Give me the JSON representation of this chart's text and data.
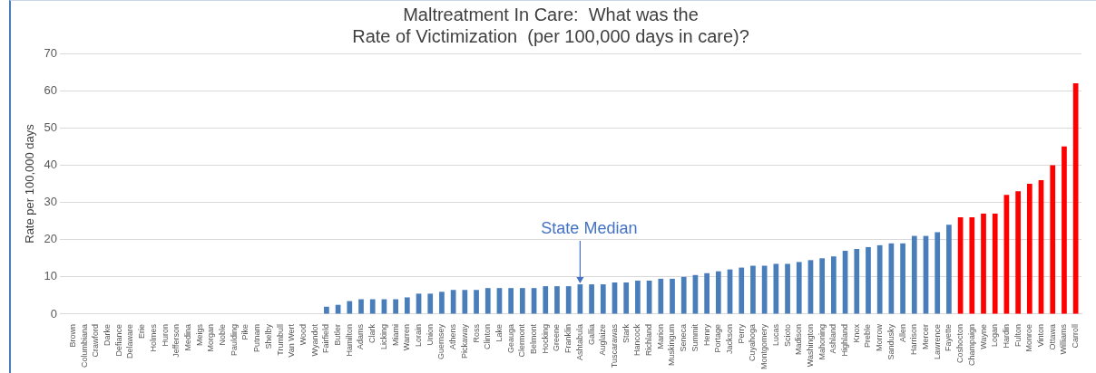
{
  "chart_data": {
    "type": "bar",
    "title": "Maltreatment In Care:  What was the\nRate of Victimization  (per 100,000 days in care)?",
    "ylabel": "Rate per 100,000 days",
    "categories": [
      "Brown",
      "Columbiana",
      "Crawford",
      "Darke",
      "Defiance",
      "Delaware",
      "Erie",
      "Holmes",
      "Huron",
      "Jefferson",
      "Medina",
      "Meigs",
      "Morgan",
      "Noble",
      "Paulding",
      "Pike",
      "Putnam",
      "Shelby",
      "Trumbull",
      "Van Wert",
      "Wood",
      "Wyandot",
      "Fairfield",
      "Butler",
      "Hamilton",
      "Adams",
      "Clark",
      "Licking",
      "Miami",
      "Warren",
      "Lorain",
      "Union",
      "Guernsey",
      "Athens",
      "Pickaway",
      "Ross",
      "Clinton",
      "Lake",
      "Geauga",
      "Clermont",
      "Belmont",
      "Hocking",
      "Greene",
      "Franklin",
      "Ashtabula",
      "Gallia",
      "Auglaize",
      "Tuscarawas",
      "Stark",
      "Hancock",
      "Richland",
      "Marion",
      "Muskingum",
      "Seneca",
      "Summit",
      "Henry",
      "Portage",
      "Jackson",
      "Perry",
      "Cuyahoga",
      "Montgomery",
      "Lucas",
      "Scioto",
      "Madison",
      "Washington",
      "Mahoning",
      "Ashland",
      "Highland",
      "Knox",
      "Preble",
      "Morrow",
      "Sandusky",
      "Allen",
      "Harrison",
      "Mercer",
      "Lawrence",
      "Fayette",
      "Coshocton",
      "Champaign",
      "Wayne",
      "Logan",
      "Hardin",
      "Fulton",
      "Monroe",
      "Vinton",
      "Ottawa",
      "Williams",
      "Carroll"
    ],
    "values": [
      0,
      0,
      0,
      0,
      0,
      0,
      0,
      0,
      0,
      0,
      0,
      0,
      0,
      0,
      0,
      0,
      0,
      0,
      0,
      0,
      0,
      0,
      2,
      2.5,
      3.5,
      4,
      4,
      4,
      4,
      4.5,
      5.5,
      5.5,
      6,
      6.5,
      6.5,
      6.5,
      7,
      7,
      7,
      7,
      7,
      7.5,
      7.5,
      7.5,
      8,
      8,
      8,
      8.5,
      8.5,
      9,
      9,
      9.5,
      9.5,
      10,
      10.5,
      11,
      11.5,
      12,
      12.5,
      13,
      13,
      13.5,
      13.5,
      14,
      14.5,
      15,
      15.5,
      17,
      17.5,
      18,
      18.5,
      19,
      19,
      21,
      21,
      22,
      24,
      26,
      26,
      27,
      27,
      32,
      33,
      35,
      36,
      40,
      45,
      62
    ],
    "colors": [
      "#4a7ebb",
      "#4a7ebb",
      "#4a7ebb",
      "#4a7ebb",
      "#4a7ebb",
      "#4a7ebb",
      "#4a7ebb",
      "#4a7ebb",
      "#4a7ebb",
      "#4a7ebb",
      "#4a7ebb",
      "#4a7ebb",
      "#4a7ebb",
      "#4a7ebb",
      "#4a7ebb",
      "#4a7ebb",
      "#4a7ebb",
      "#4a7ebb",
      "#4a7ebb",
      "#4a7ebb",
      "#4a7ebb",
      "#4a7ebb",
      "#4a7ebb",
      "#4a7ebb",
      "#4a7ebb",
      "#4a7ebb",
      "#4a7ebb",
      "#4a7ebb",
      "#4a7ebb",
      "#4a7ebb",
      "#4a7ebb",
      "#4a7ebb",
      "#4a7ebb",
      "#4a7ebb",
      "#4a7ebb",
      "#4a7ebb",
      "#4a7ebb",
      "#4a7ebb",
      "#4a7ebb",
      "#4a7ebb",
      "#4a7ebb",
      "#4a7ebb",
      "#4a7ebb",
      "#4a7ebb",
      "#4a7ebb",
      "#4a7ebb",
      "#4a7ebb",
      "#4a7ebb",
      "#4a7ebb",
      "#4a7ebb",
      "#4a7ebb",
      "#4a7ebb",
      "#4a7ebb",
      "#4a7ebb",
      "#4a7ebb",
      "#4a7ebb",
      "#4a7ebb",
      "#4a7ebb",
      "#4a7ebb",
      "#4a7ebb",
      "#4a7ebb",
      "#4a7ebb",
      "#4a7ebb",
      "#4a7ebb",
      "#4a7ebb",
      "#4a7ebb",
      "#4a7ebb",
      "#4a7ebb",
      "#4a7ebb",
      "#4a7ebb",
      "#4a7ebb",
      "#4a7ebb",
      "#4a7ebb",
      "#4a7ebb",
      "#4a7ebb",
      "#4a7ebb",
      "#4a7ebb",
      "#ff0000",
      "#ff0000",
      "#ff0000",
      "#ff0000",
      "#ff0000",
      "#ff0000",
      "#ff0000",
      "#ff0000",
      "#ff0000",
      "#ff0000",
      "#ff0000"
    ],
    "ylim": [
      0,
      70
    ],
    "yticks": [
      0,
      10,
      20,
      30,
      40,
      50,
      60,
      70
    ],
    "grid": "y",
    "legend": false,
    "annotations": [
      {
        "text": "State Median",
        "x": "Ashtabula",
        "y": 8
      }
    ]
  }
}
